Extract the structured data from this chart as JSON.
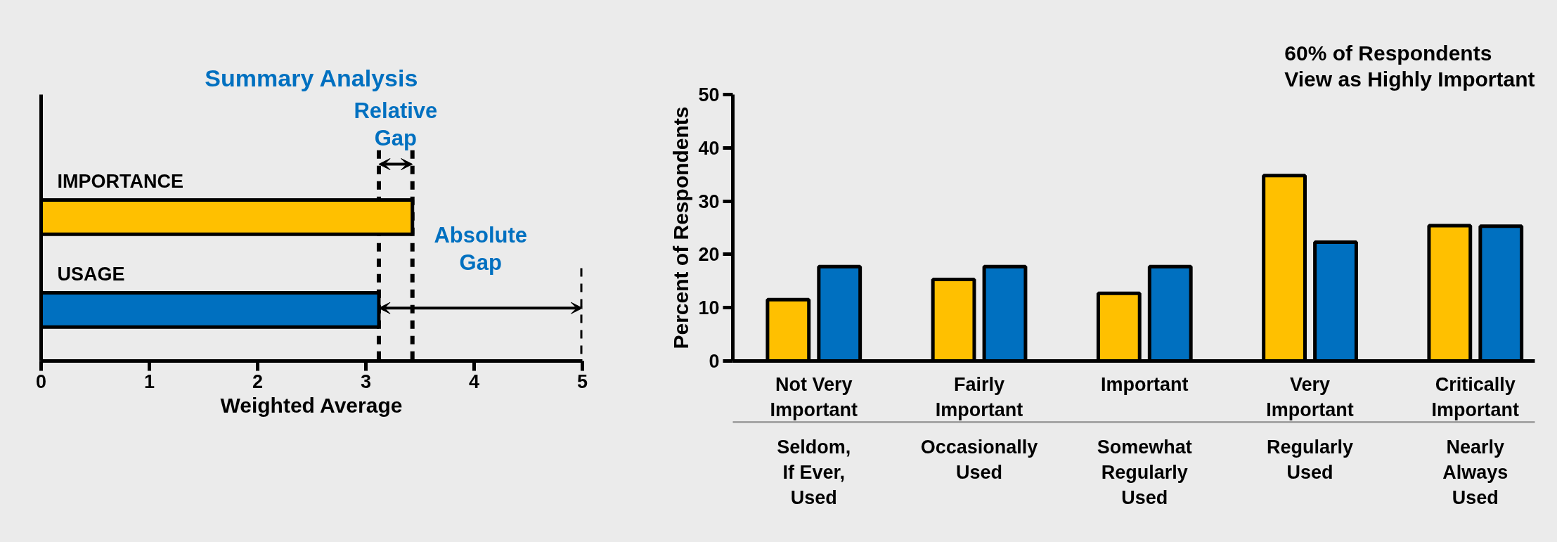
{
  "chart_data": [
    {
      "type": "bar",
      "orientation": "horizontal",
      "title": "Summary Analysis",
      "xlabel": "Weighted Average",
      "categories": [
        "IMPORTANCE",
        "USAGE"
      ],
      "values": [
        3.43,
        3.12
      ],
      "colors": [
        "#ffc000",
        "#0070c0"
      ],
      "xlim": [
        0,
        5
      ],
      "xticks": [
        0,
        1,
        2,
        3,
        4,
        5
      ],
      "grid": false,
      "ref_lines": [
        {
          "axis": "x",
          "value": 3.12,
          "line_style": "dashed"
        },
        {
          "axis": "x",
          "value": 3.43,
          "line_style": "dashed"
        },
        {
          "axis": "x",
          "value": 5,
          "line_style": "dashed"
        }
      ],
      "annotations": [
        "Relative\nGap",
        "Absolute\nGap"
      ]
    },
    {
      "type": "bar",
      "ylabel": "Percent of Respondents",
      "categories": [
        "Not Very\nImportant",
        "Fairly\nImportant",
        "Important",
        "Very\nImportant",
        "Critically\nImportant"
      ],
      "series": [
        {
          "color": "#ffc000",
          "values": [
            11.5,
            15.3,
            12.7,
            34.8,
            25.4
          ]
        },
        {
          "color": "#0070c0",
          "values": [
            17.7,
            17.7,
            17.7,
            22.3,
            25.3
          ]
        }
      ],
      "ylim": [
        0,
        50
      ],
      "yticks": [
        0,
        10,
        20,
        30,
        40,
        50
      ],
      "grid": false,
      "annotations": [
        "60% of Respondents\nView as Highly Important",
        "Seldom,\nIf Ever,\nUsed",
        "Occasionally\nUsed",
        "Somewhat\nRegularly\nUsed",
        "Regularly\nUsed",
        "Nearly\nAlways\nUsed"
      ]
    }
  ]
}
